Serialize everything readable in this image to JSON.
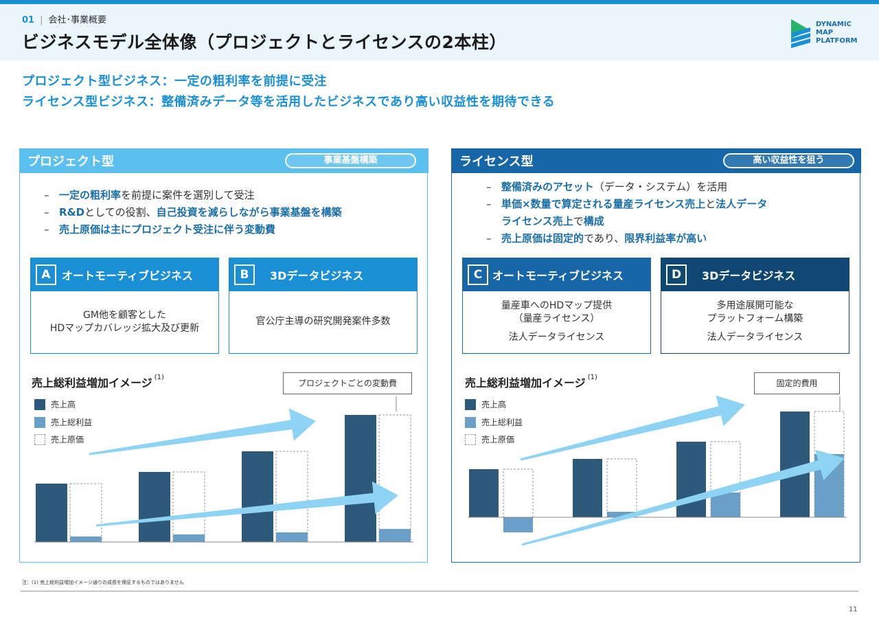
{
  "header": {
    "section_number": "01",
    "section_name": "会社･事業概要",
    "title": "ビジネスモデル全体像（プロジェクトとライセンスの2本柱）",
    "logo_lines": [
      "DYNAMIC",
      "MAP",
      "PLATFORM"
    ]
  },
  "lead": [
    "プロジェクト型ビジネス：一定の粗利率を前提に受注",
    "ライセンス型ビジネス：整備済みデータ等を活用したビジネスであり高い収益性を期待できる"
  ],
  "left_panel": {
    "title": "プロジェクト型",
    "pill": "事業基盤構築",
    "bullets": [
      [
        {
          "t": "一定の粗利率",
          "hl": true
        },
        {
          "t": "を前提に案件を選別して受注",
          "hl": false
        }
      ],
      [
        {
          "t": "R&D",
          "hl": true
        },
        {
          "t": "としての役割、",
          "hl": false
        },
        {
          "t": "自己投資を減らしながら事業基盤を構築",
          "hl": true
        }
      ],
      [
        {
          "t": "売上原価は主にプロジェクト受注に伴う変動費",
          "hl": true
        }
      ]
    ],
    "cards": [
      {
        "letter": "A",
        "title": "オートモーティブビジネス",
        "lines": [
          "GM他を顧客とした",
          "HDマップカバレッジ拡大及び更新"
        ]
      },
      {
        "letter": "B",
        "title": "3Dデータビジネス",
        "lines": [
          "官公庁主導の研究開発案件多数"
        ]
      }
    ],
    "chart_title": "売上総利益増加イメージ",
    "chart_note": "(1)",
    "callout": "プロジェクトごとの変動費"
  },
  "right_panel": {
    "title": "ライセンス型",
    "pill": "高い収益性を狙う",
    "bullets": [
      [
        {
          "t": "整備済みのアセット",
          "hl": true
        },
        {
          "t": "（データ・システム）を活用",
          "hl": false
        }
      ],
      [
        {
          "t": "単価×数量で算定される量産ライセンス売上",
          "hl": true
        },
        {
          "t": "と",
          "hl": false
        },
        {
          "t": "法人データ",
          "hl": true
        }
      ],
      [
        {
          "t": "売上原価は固定的",
          "hl": true
        },
        {
          "t": "であり、",
          "hl": false
        },
        {
          "t": "限界利益率が高い",
          "hl": true
        }
      ]
    ],
    "bullet2_cont": [
      {
        "t": "ライセンス売上",
        "hl": true
      },
      {
        "t": "で",
        "hl": false
      },
      {
        "t": "構成",
        "hl": true
      }
    ],
    "cards": [
      {
        "letter": "C",
        "title": "オートモーティブビジネス",
        "lines": [
          "量産車へのHDマップ提供",
          "（量産ライセンス）",
          "法人データライセンス"
        ]
      },
      {
        "letter": "D",
        "title": "3Dデータビジネス",
        "lines": [
          "多用途展開可能な",
          "プラットフォーム構築",
          "法人データライセンス"
        ]
      }
    ],
    "chart_title": "売上総利益増加イメージ",
    "chart_note": "(1)",
    "callout": "固定的費用"
  },
  "legend": [
    "売上高",
    "売上総利益",
    "売上原価"
  ],
  "colors": {
    "sales": "#2d5a7b",
    "gross_profit": "#6aa0c8",
    "cost_border": "#999999",
    "arrow": "#8fd3f4",
    "accent": "#1a8fd6"
  },
  "chart_data": [
    {
      "type": "bar",
      "title": "売上総利益増加イメージ",
      "series": [
        {
          "name": "売上高",
          "values": [
            85,
            102,
            132,
            185
          ]
        },
        {
          "name": "売上総利益",
          "values": [
            8,
            11,
            14,
            19
          ]
        },
        {
          "name": "売上原価",
          "values": [
            85,
            102,
            132,
            185
          ]
        }
      ]
    },
    {
      "type": "bar",
      "title": "売上総利益増加イメージ",
      "series": [
        {
          "name": "売上高",
          "values": [
            70,
            85,
            110,
            154
          ]
        },
        {
          "name": "売上総利益",
          "values": [
            -22,
            8,
            36,
            92
          ]
        },
        {
          "name": "売上原価",
          "values": [
            70,
            85,
            110,
            154
          ]
        }
      ]
    }
  ],
  "footnote": "注：(1) 売上総利益増加イメージ通りの成長を保証するものではありません",
  "page_number": "11"
}
